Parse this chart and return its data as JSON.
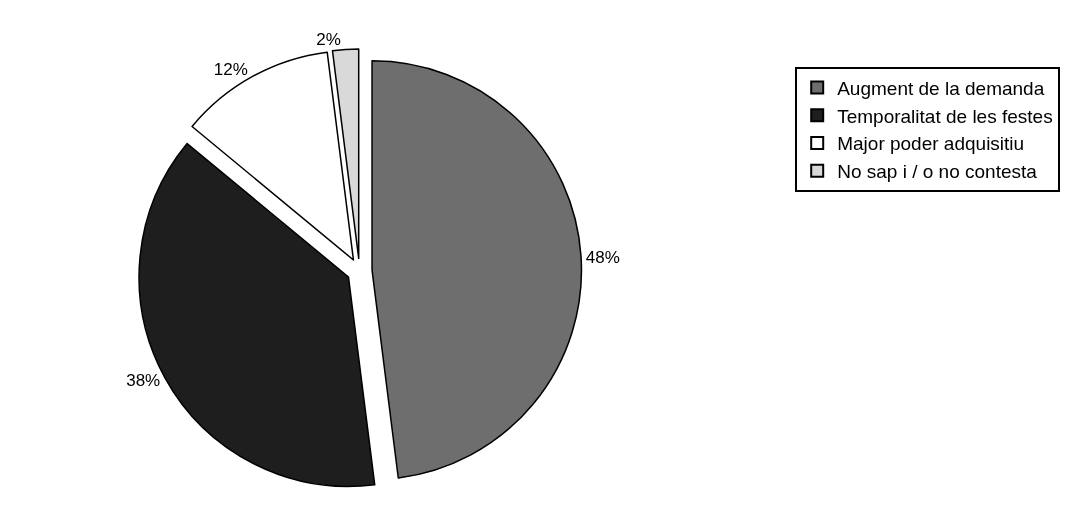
{
  "chart_data": {
    "type": "pie",
    "categories": [
      "Augment de la demanda",
      "Temporalitat de les festes",
      "Major poder adquisitiu",
      "No sap i / o no contesta"
    ],
    "values": [
      48,
      38,
      12,
      2
    ],
    "colors": [
      "#6e6e6e",
      "#1e1e1e",
      "#ffffff",
      "#d9d9d9"
    ],
    "value_labels": [
      "48%",
      "38%",
      "12%",
      "2%"
    ],
    "legend": "top right"
  }
}
